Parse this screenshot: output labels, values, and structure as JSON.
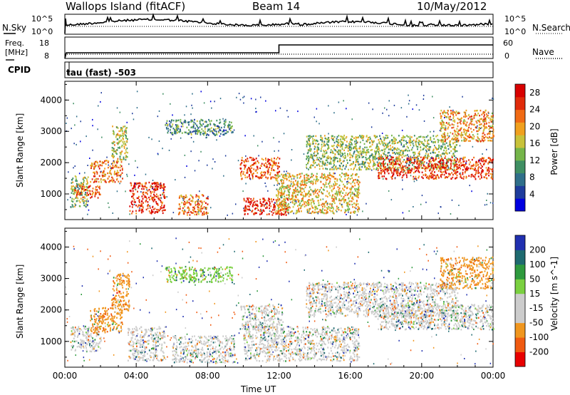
{
  "header": {
    "station": "Wallops Island (fitACF)",
    "beam": "Beam 14",
    "date": "10/May/2012"
  },
  "strip_labels": {
    "nsky": "N.Sky",
    "nsky_top": "10^5",
    "nsky_bottom": "10^0",
    "nsearch": "N.Search",
    "nsearch_top": "10^5",
    "nsearch_bottom": "10^0",
    "freq": "Freq.",
    "freq_unit": "[MHz]",
    "freq_top": "18",
    "freq_bottom": "8",
    "nave": "Nave",
    "nave_top": "60",
    "nave_bottom": "0",
    "cpid": "CPID",
    "cpid_text": "tau (fast) -503"
  },
  "colors": {
    "power": [
      "#0000e0",
      "#1e3c9c",
      "#2f6f8a",
      "#3f8f63",
      "#75b54a",
      "#c8c23a",
      "#f0a01e",
      "#f06a14",
      "#e02b0a",
      "#d80000"
    ],
    "velocity": [
      "#e80000",
      "#f05a10",
      "#f0961e",
      "#cccccc",
      "#cccccc",
      "#7ad040",
      "#2e9a3e",
      "#1e6a70",
      "#2030b0"
    ]
  },
  "chart_data": [
    {
      "type": "heatmap",
      "title": "Power",
      "ylabel": "Slant Range [km]",
      "xlabel": "Time UT",
      "x_ticks": [
        "00:00",
        "04:00",
        "08:00",
        "12:00",
        "16:00",
        "20:00",
        "00:00"
      ],
      "x_range_hours": [
        0,
        24
      ],
      "ylim": [
        180,
        4600
      ],
      "y_ticks": [
        1000,
        2000,
        3000,
        4000
      ],
      "colorbar_label": "Power [dB]",
      "colorbar_ticks": [
        "4",
        "8",
        "12",
        "16",
        "20",
        "24",
        "28"
      ],
      "colorbar_range": [
        0,
        30
      ],
      "bands": [
        {
          "t": [
            0.3,
            1.3
          ],
          "r": [
            600,
            1600
          ],
          "p": 14
        },
        {
          "t": [
            0.5,
            2.0
          ],
          "r": [
            900,
            1300
          ],
          "p": 24
        },
        {
          "t": [
            1.4,
            3.2
          ],
          "r": [
            1400,
            2100
          ],
          "p": 22
        },
        {
          "t": [
            2.6,
            3.5
          ],
          "r": [
            2100,
            3200
          ],
          "p": 16
        },
        {
          "t": [
            3.6,
            5.6
          ],
          "r": [
            400,
            1400
          ],
          "p": 26
        },
        {
          "t": [
            5.6,
            9.4
          ],
          "r": [
            2900,
            3400
          ],
          "p": 10
        },
        {
          "t": [
            6.3,
            8.0
          ],
          "r": [
            350,
            1000
          ],
          "p": 22
        },
        {
          "t": [
            9.8,
            12.0
          ],
          "r": [
            1500,
            2200
          ],
          "p": 24
        },
        {
          "t": [
            10.0,
            12.5
          ],
          "r": [
            350,
            900
          ],
          "p": 26
        },
        {
          "t": [
            11.8,
            16.5
          ],
          "r": [
            400,
            1700
          ],
          "p": 18
        },
        {
          "t": [
            13.5,
            22.0
          ],
          "r": [
            1800,
            2900
          ],
          "p": 14
        },
        {
          "t": [
            17.5,
            24.0
          ],
          "r": [
            1500,
            2200
          ],
          "p": 26
        },
        {
          "t": [
            21.0,
            24.0
          ],
          "r": [
            2700,
            3700
          ],
          "p": 20
        }
      ]
    },
    {
      "type": "heatmap",
      "title": "Velocity",
      "ylabel": "Slant Range [km]",
      "xlabel": "Time UT",
      "x_ticks": [
        "00:00",
        "04:00",
        "08:00",
        "12:00",
        "16:00",
        "20:00",
        "00:00"
      ],
      "x_range_hours": [
        0,
        24
      ],
      "ylim": [
        180,
        4600
      ],
      "y_ticks": [
        1000,
        2000,
        3000,
        4000
      ],
      "colorbar_label": "Velocity [m s^-1]",
      "colorbar_ticks": [
        "200",
        "100",
        "50",
        "15",
        "-15",
        "-50",
        "-100",
        "-200"
      ],
      "colorbar_range": [
        -250,
        250
      ],
      "bands": [
        {
          "t": [
            0.3,
            2.0
          ],
          "r": [
            700,
            1500
          ],
          "v": 0
        },
        {
          "t": [
            1.4,
            3.2
          ],
          "r": [
            1300,
            2100
          ],
          "v": -60
        },
        {
          "t": [
            2.6,
            3.6
          ],
          "r": [
            2000,
            3200
          ],
          "v": -80
        },
        {
          "t": [
            3.5,
            5.6
          ],
          "r": [
            400,
            1500
          ],
          "v": 0
        },
        {
          "t": [
            5.6,
            9.4
          ],
          "r": [
            2900,
            3400
          ],
          "v": 5
        },
        {
          "t": [
            6.0,
            9.5
          ],
          "r": [
            350,
            1200
          ],
          "v": 0
        },
        {
          "t": [
            9.8,
            12.2
          ],
          "r": [
            1400,
            2200
          ],
          "v": 0
        },
        {
          "t": [
            10.0,
            16.5
          ],
          "r": [
            400,
            1500
          ],
          "v": 0
        },
        {
          "t": [
            13.5,
            22.0
          ],
          "r": [
            1800,
            2900
          ],
          "v": 0
        },
        {
          "t": [
            17.5,
            24.0
          ],
          "r": [
            1400,
            2200
          ],
          "v": 0
        },
        {
          "t": [
            21.0,
            24.0
          ],
          "r": [
            2700,
            3700
          ],
          "v": -70
        }
      ]
    }
  ]
}
